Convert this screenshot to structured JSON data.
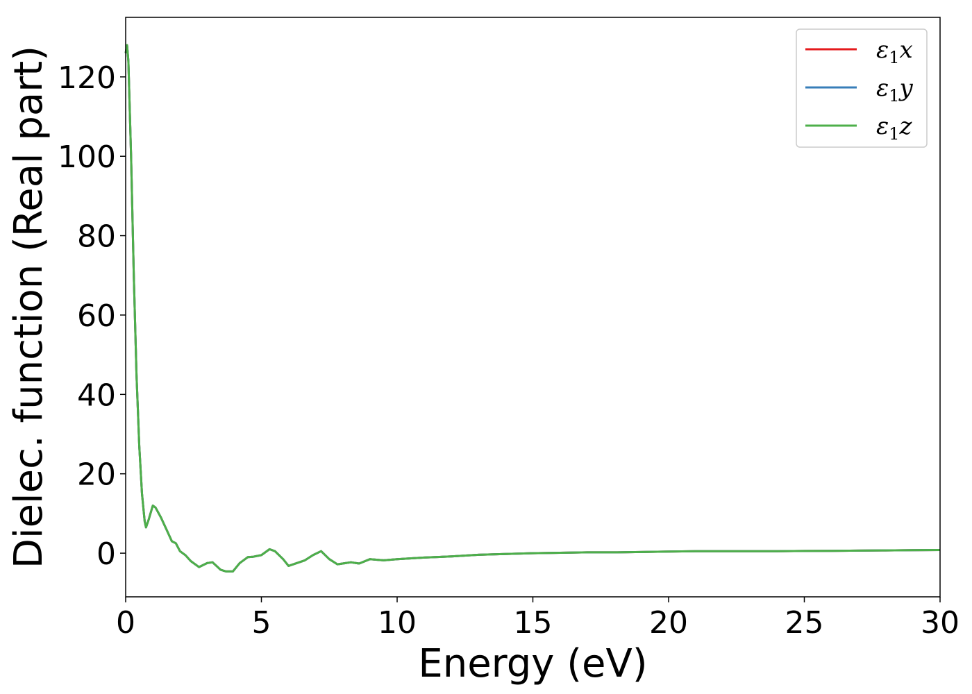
{
  "chart_data": {
    "type": "line",
    "xlabel": "Energy (eV)",
    "ylabel": "Dielec. function (Real part)",
    "xlim": [
      0,
      30
    ],
    "ylim": [
      -11,
      135
    ],
    "x_ticks": [
      0,
      5,
      10,
      15,
      20,
      25,
      30
    ],
    "y_ticks": [
      0,
      20,
      40,
      60,
      80,
      100,
      120
    ],
    "grid": false,
    "legend_position": "top-right",
    "series": [
      {
        "name": "ε1x",
        "label_base": "ε",
        "label_sub": "1",
        "label_var": "x",
        "color": "#e41a1c",
        "x": [
          0,
          0.05,
          0.1,
          0.2,
          0.3,
          0.4,
          0.5,
          0.6,
          0.7,
          0.75,
          0.85,
          1.0,
          1.1,
          1.3,
          1.5,
          1.7,
          1.85,
          2.0,
          2.2,
          2.4,
          2.7,
          3.0,
          3.2,
          3.5,
          3.7,
          3.95,
          4.2,
          4.5,
          4.7,
          5.0,
          5.3,
          5.5,
          5.8,
          6.0,
          6.3,
          6.6,
          6.9,
          7.2,
          7.5,
          7.8,
          8.1,
          8.3,
          8.6,
          9.0,
          9.5,
          10,
          11,
          12,
          13,
          14,
          15,
          16,
          17,
          18,
          19,
          20,
          21,
          22,
          23,
          24,
          25,
          26,
          27,
          28,
          29,
          30
        ],
        "y": [
          126,
          128,
          124,
          100,
          70,
          45,
          27,
          15,
          8,
          6.5,
          8.5,
          12,
          11.5,
          9,
          6,
          3,
          2.5,
          0.5,
          -0.5,
          -2,
          -3.5,
          -2.5,
          -2.3,
          -4.2,
          -4.6,
          -4.6,
          -2.5,
          -1.0,
          -0.9,
          -0.5,
          1.0,
          0.5,
          -1.5,
          -3.2,
          -2.5,
          -1.8,
          -0.5,
          0.5,
          -1.5,
          -2.8,
          -2.5,
          -2.3,
          -2.6,
          -1.5,
          -1.8,
          -1.5,
          -1.1,
          -0.8,
          -0.4,
          -0.2,
          0.0,
          0.1,
          0.2,
          0.2,
          0.3,
          0.4,
          0.5,
          0.5,
          0.5,
          0.5,
          0.55,
          0.6,
          0.65,
          0.7,
          0.75,
          0.8
        ]
      },
      {
        "name": "ε1y",
        "label_base": "ε",
        "label_sub": "1",
        "label_var": "y",
        "color": "#377eb8",
        "x": [
          0,
          0.05,
          0.1,
          0.2,
          0.3,
          0.4,
          0.5,
          0.6,
          0.7,
          0.75,
          0.85,
          1.0,
          1.1,
          1.3,
          1.5,
          1.7,
          1.85,
          2.0,
          2.2,
          2.4,
          2.7,
          3.0,
          3.2,
          3.5,
          3.7,
          3.95,
          4.2,
          4.5,
          4.7,
          5.0,
          5.3,
          5.5,
          5.8,
          6.0,
          6.3,
          6.6,
          6.9,
          7.2,
          7.5,
          7.8,
          8.1,
          8.3,
          8.6,
          9.0,
          9.5,
          10,
          11,
          12,
          13,
          14,
          15,
          16,
          17,
          18,
          19,
          20,
          21,
          22,
          23,
          24,
          25,
          26,
          27,
          28,
          29,
          30
        ],
        "y": [
          126,
          128,
          124,
          100,
          70,
          45,
          27,
          15,
          8,
          6.5,
          8.5,
          12,
          11.5,
          9,
          6,
          3,
          2.5,
          0.5,
          -0.5,
          -2,
          -3.5,
          -2.5,
          -2.3,
          -4.2,
          -4.6,
          -4.6,
          -2.5,
          -1.0,
          -0.9,
          -0.5,
          1.0,
          0.5,
          -1.5,
          -3.2,
          -2.5,
          -1.8,
          -0.5,
          0.5,
          -1.5,
          -2.8,
          -2.5,
          -2.3,
          -2.6,
          -1.5,
          -1.8,
          -1.5,
          -1.1,
          -0.8,
          -0.4,
          -0.2,
          0.0,
          0.1,
          0.2,
          0.2,
          0.3,
          0.4,
          0.5,
          0.5,
          0.5,
          0.5,
          0.55,
          0.6,
          0.65,
          0.7,
          0.75,
          0.8
        ]
      },
      {
        "name": "ε1z",
        "label_base": "ε",
        "label_sub": "1",
        "label_var": "z",
        "color": "#4daf4a",
        "x": [
          0,
          0.05,
          0.1,
          0.2,
          0.3,
          0.4,
          0.5,
          0.6,
          0.7,
          0.75,
          0.85,
          1.0,
          1.1,
          1.3,
          1.5,
          1.7,
          1.85,
          2.0,
          2.2,
          2.4,
          2.7,
          3.0,
          3.2,
          3.5,
          3.7,
          3.95,
          4.2,
          4.5,
          4.7,
          5.0,
          5.3,
          5.5,
          5.8,
          6.0,
          6.3,
          6.6,
          6.9,
          7.2,
          7.5,
          7.8,
          8.1,
          8.3,
          8.6,
          9.0,
          9.5,
          10,
          11,
          12,
          13,
          14,
          15,
          16,
          17,
          18,
          19,
          20,
          21,
          22,
          23,
          24,
          25,
          26,
          27,
          28,
          29,
          30
        ],
        "y": [
          126,
          128,
          124,
          100,
          70,
          45,
          27,
          15,
          8,
          6.5,
          8.5,
          12,
          11.5,
          9,
          6,
          3,
          2.5,
          0.5,
          -0.5,
          -2,
          -3.5,
          -2.5,
          -2.3,
          -4.2,
          -4.6,
          -4.6,
          -2.5,
          -1.0,
          -0.9,
          -0.5,
          1.0,
          0.5,
          -1.5,
          -3.2,
          -2.5,
          -1.8,
          -0.5,
          0.5,
          -1.5,
          -2.8,
          -2.5,
          -2.3,
          -2.6,
          -1.5,
          -1.8,
          -1.5,
          -1.1,
          -0.8,
          -0.4,
          -0.2,
          0.0,
          0.1,
          0.2,
          0.2,
          0.3,
          0.4,
          0.5,
          0.5,
          0.5,
          0.5,
          0.55,
          0.6,
          0.65,
          0.7,
          0.75,
          0.8
        ]
      }
    ]
  }
}
